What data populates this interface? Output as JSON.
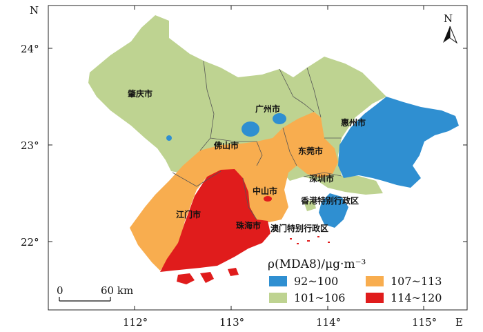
{
  "map": {
    "corner_labels": {
      "north": "N",
      "east": "E"
    },
    "lat_ticks": [
      "24°",
      "23°",
      "22°"
    ],
    "lon_ticks": [
      "112°",
      "113°",
      "114°",
      "115°"
    ],
    "compass_label": "N",
    "scale_bar": {
      "zero": "0",
      "distance": "60 km"
    },
    "cities": {
      "zhaoqing": "肇庆市",
      "guangzhou": "广州市",
      "huizhou": "惠州市",
      "foshan": "佛山市",
      "dongguan": "东莞市",
      "shenzhen": "深圳市",
      "zhongshan": "中山市",
      "hongkong": "香港特别行政区",
      "jiangmen": "江门市",
      "zhuhai": "珠海市",
      "macao": "澳门特别行政区"
    },
    "legend": {
      "title": "ρ(MDA8)/μg·m⁻³",
      "items": [
        {
          "label": "92~100",
          "color": "#2f8fd1"
        },
        {
          "label": "107~113",
          "color": "#f8ad4f"
        },
        {
          "label": "101~106",
          "color": "#bed391"
        },
        {
          "label": "114~120",
          "color": "#e01c1c"
        }
      ]
    },
    "colors": {
      "class_92_100": "#2f8fd1",
      "class_101_106": "#bed391",
      "class_107_113": "#f8ad4f",
      "class_114_120": "#e01c1c"
    }
  }
}
